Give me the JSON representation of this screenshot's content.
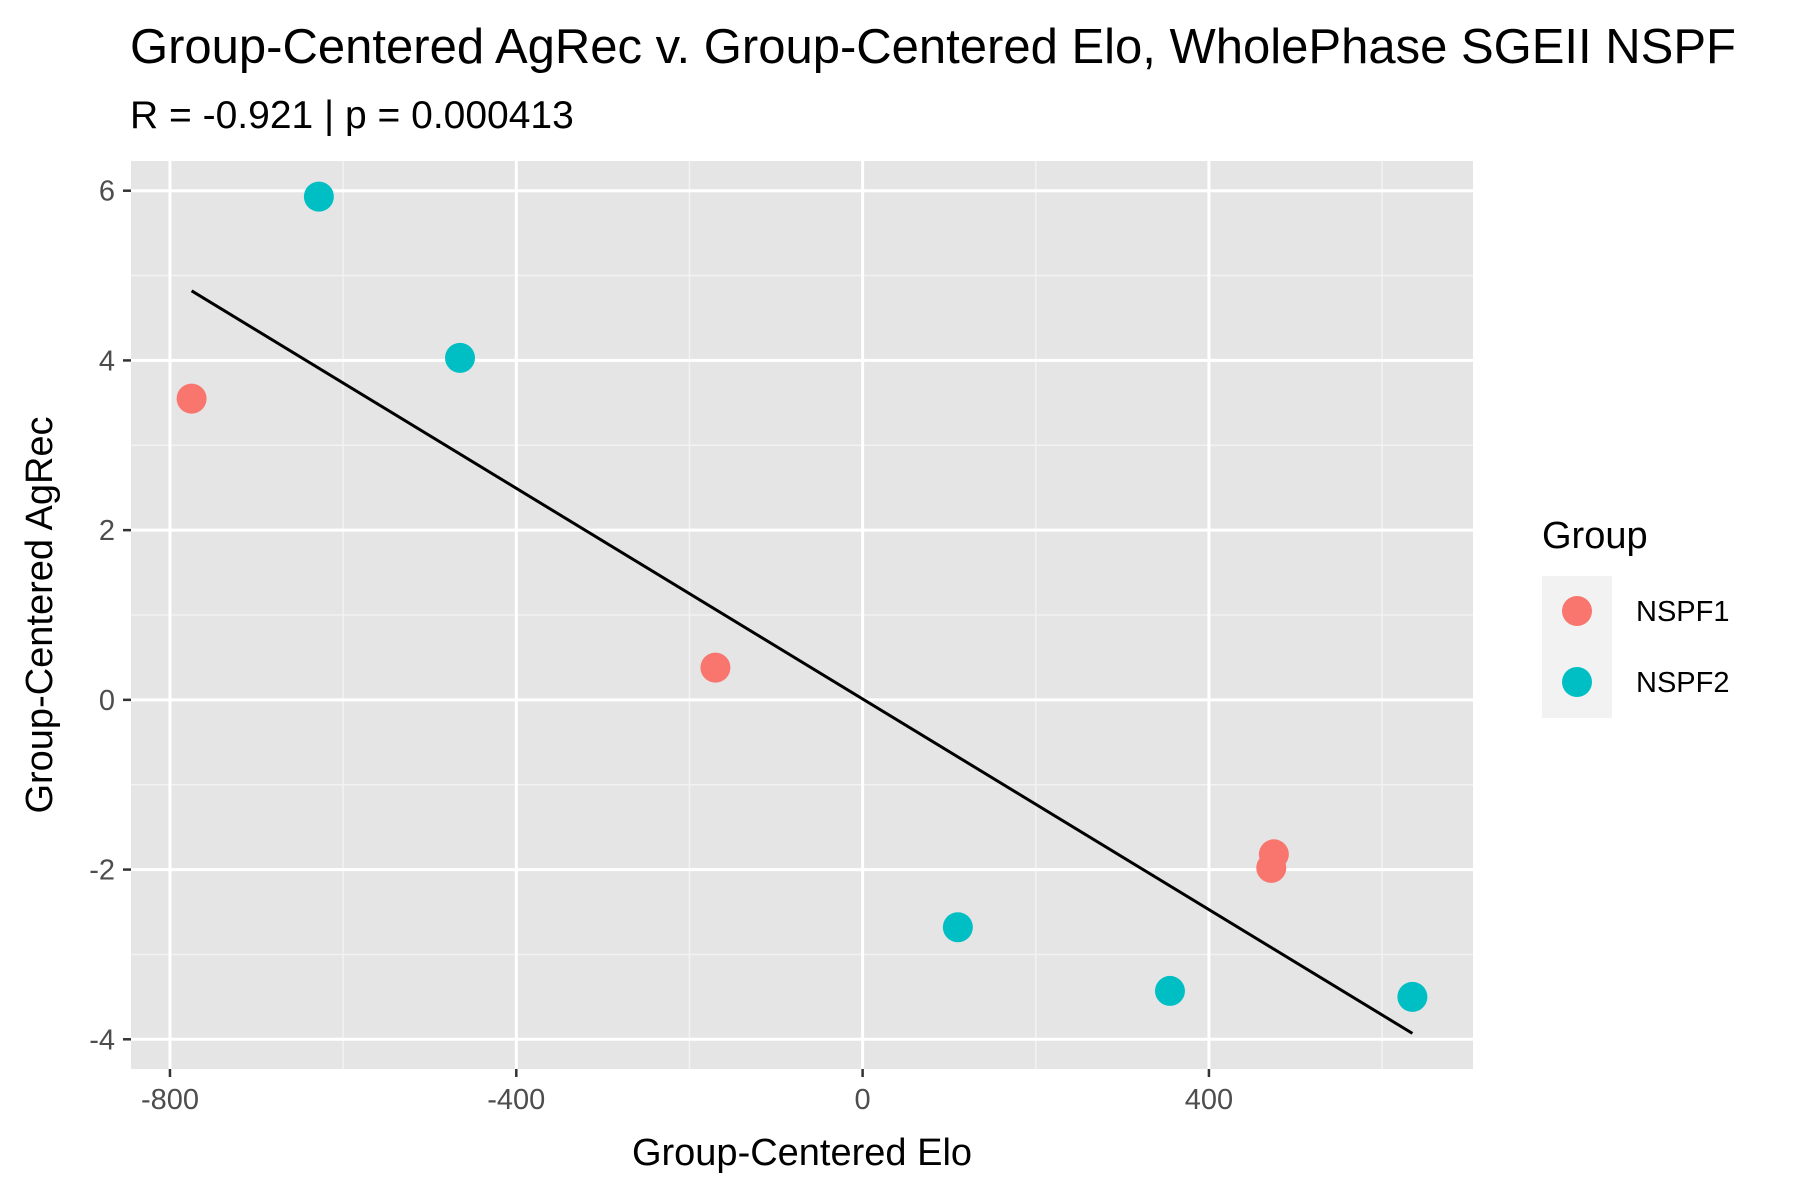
{
  "chart_data": {
    "type": "scatter",
    "title": "Group-Centered AgRec v. Group-Centered Elo, WholePhase SGEII NSPF",
    "subtitle": "R = -0.921 | p = 0.000413",
    "xlabel": "Group-Centered Elo",
    "ylabel": "Group-Centered AgRec",
    "xlim": [
      -845,
      705
    ],
    "ylim": [
      -4.35,
      6.35
    ],
    "x_ticks": [
      -800,
      -400,
      0,
      400
    ],
    "y_ticks": [
      -4,
      -2,
      0,
      2,
      4,
      6
    ],
    "x_tick_labels": [
      "-800",
      "-400",
      "0",
      "400"
    ],
    "y_tick_labels": [
      "-4",
      "-2",
      "0",
      "2",
      "4",
      "6"
    ],
    "grid": true,
    "legend": {
      "title": "Group",
      "placement": "right"
    },
    "series": [
      {
        "name": "NSPF1",
        "color": "#F8766D",
        "points": [
          {
            "x": -775,
            "y": 3.55
          },
          {
            "x": -170,
            "y": 0.38
          },
          {
            "x": 475,
            "y": -1.82
          },
          {
            "x": 472,
            "y": -1.98
          }
        ]
      },
      {
        "name": "NSPF2",
        "color": "#00BFC4",
        "points": [
          {
            "x": -628,
            "y": 5.93
          },
          {
            "x": -465,
            "y": 4.03
          },
          {
            "x": 110,
            "y": -2.68
          },
          {
            "x": 355,
            "y": -3.43
          },
          {
            "x": 635,
            "y": -3.5
          }
        ]
      }
    ],
    "fit_line": {
      "color": "#000000",
      "x": [
        -775,
        635
      ],
      "y": [
        4.82,
        -3.93
      ]
    }
  }
}
